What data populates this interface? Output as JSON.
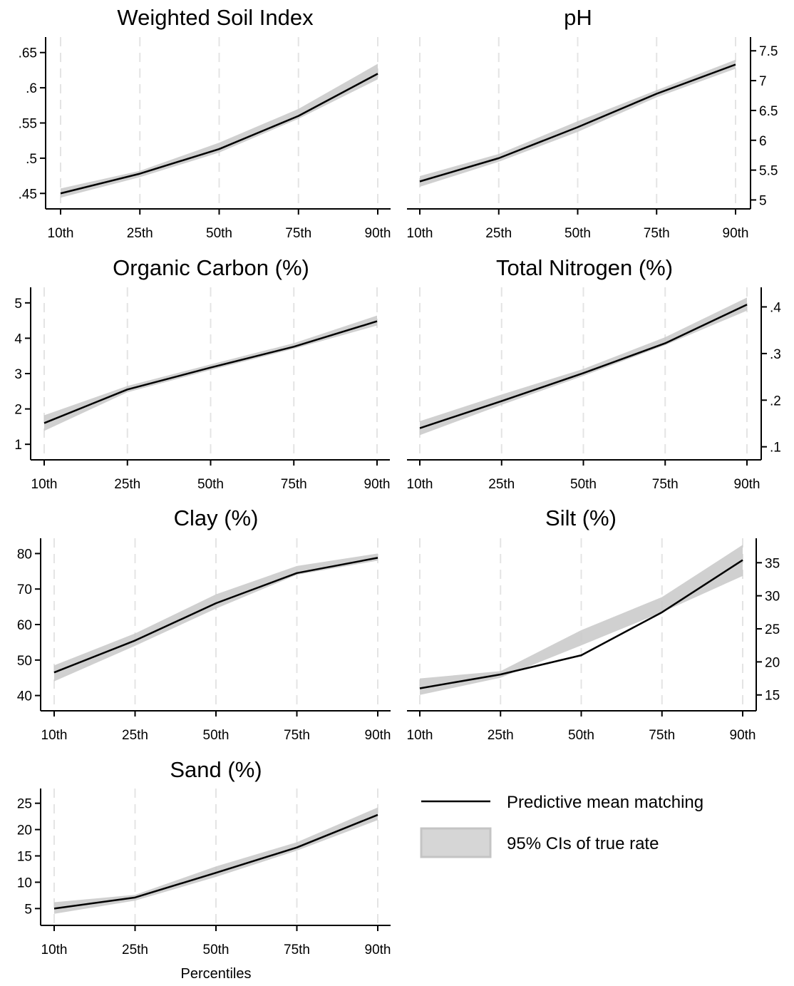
{
  "chart_data": [
    {
      "type": "line",
      "title": "Weighted Soil Index",
      "categories": [
        "10th",
        "25th",
        "50th",
        "75th",
        "90th"
      ],
      "series": [
        {
          "name": "Predictive mean matching",
          "values": [
            0.45,
            0.478,
            0.513,
            0.56,
            0.62
          ]
        },
        {
          "name": "95% CIs of true rate",
          "lower": [
            0.444,
            0.473,
            0.508,
            0.556,
            0.612
          ],
          "upper": [
            0.457,
            0.482,
            0.522,
            0.57,
            0.634
          ]
        }
      ],
      "yticks": [
        ".45",
        ".5",
        ".55",
        ".6",
        ".65"
      ],
      "ytick_values": [
        0.45,
        0.5,
        0.55,
        0.6,
        0.65
      ],
      "ylim": [
        0.428,
        0.672
      ],
      "yaxis_side": "left",
      "grid": "vertical dashed"
    },
    {
      "type": "line",
      "title": "pH",
      "categories": [
        "10th",
        "25th",
        "50th",
        "75th",
        "90th"
      ],
      "series": [
        {
          "name": "Predictive mean matching",
          "values": [
            5.31,
            5.7,
            6.22,
            6.78,
            7.27
          ]
        },
        {
          "name": "95% CIs of true rate",
          "lower": [
            5.22,
            5.64,
            6.14,
            6.72,
            7.2
          ],
          "upper": [
            5.4,
            5.77,
            6.32,
            6.84,
            7.35
          ]
        }
      ],
      "yticks": [
        "5",
        "5.5",
        "6",
        "6.5",
        "7",
        "7.5"
      ],
      "ytick_values": [
        5,
        5.5,
        6,
        6.5,
        7,
        7.5
      ],
      "ylim": [
        4.85,
        7.73
      ],
      "yaxis_side": "right",
      "grid": "vertical dashed"
    },
    {
      "type": "line",
      "title": "Organic Carbon (%)",
      "categories": [
        "10th",
        "25th",
        "50th",
        "75th",
        "90th"
      ],
      "series": [
        {
          "name": "Predictive mean matching",
          "values": [
            1.6,
            2.55,
            3.17,
            3.76,
            4.48
          ]
        },
        {
          "name": "95% CIs of true rate",
          "lower": [
            1.38,
            2.47,
            3.1,
            3.7,
            4.36
          ],
          "upper": [
            1.82,
            2.65,
            3.26,
            3.86,
            4.64
          ]
        }
      ],
      "yticks": [
        "1",
        "2",
        "3",
        "4",
        "5"
      ],
      "ytick_values": [
        1,
        2,
        3,
        4,
        5
      ],
      "ylim": [
        0.56,
        5.44
      ],
      "yaxis_side": "left",
      "grid": "vertical dashed"
    },
    {
      "type": "line",
      "title": "Total Nitrogen (%)",
      "categories": [
        "10th",
        "25th",
        "50th",
        "75th",
        "90th"
      ],
      "series": [
        {
          "name": "Predictive mean matching",
          "values": [
            0.14,
            0.198,
            0.258,
            0.322,
            0.405
          ]
        },
        {
          "name": "95% CIs of true rate",
          "lower": [
            0.125,
            0.19,
            0.252,
            0.318,
            0.392
          ],
          "upper": [
            0.155,
            0.212,
            0.267,
            0.335,
            0.42
          ]
        }
      ],
      "yticks": [
        ".1",
        ".2",
        ".3",
        ".4"
      ],
      "ytick_values": [
        0.1,
        0.2,
        0.3,
        0.4
      ],
      "ylim": [
        0.072,
        0.442
      ],
      "yaxis_side": "right",
      "grid": "vertical dashed"
    },
    {
      "type": "line",
      "title": "Clay (%)",
      "categories": [
        "10th",
        "25th",
        "50th",
        "75th",
        "90th"
      ],
      "series": [
        {
          "name": "Predictive mean matching",
          "values": [
            46.5,
            55.5,
            66.0,
            74.5,
            78.8
          ]
        },
        {
          "name": "95% CIs of true rate",
          "lower": [
            44.0,
            54.0,
            64.5,
            74.0,
            78.0
          ],
          "upper": [
            48.5,
            57.5,
            68.5,
            76.5,
            80.0
          ]
        }
      ],
      "yticks": [
        "40",
        "50",
        "60",
        "70",
        "80"
      ],
      "ytick_values": [
        40,
        50,
        60,
        70,
        80
      ],
      "ylim": [
        35.7,
        84.3
      ],
      "yaxis_side": "left",
      "grid": "vertical dashed"
    },
    {
      "type": "line",
      "title": "Silt (%)",
      "categories": [
        "10th",
        "25th",
        "50th",
        "75th",
        "90th"
      ],
      "series": [
        {
          "name": "Predictive mean matching",
          "values": [
            16.0,
            18.1,
            21.0,
            27.5,
            35.4
          ]
        },
        {
          "name": "95% CIs of true rate",
          "lower": [
            15.0,
            17.6,
            22.5,
            27.5,
            33.0
          ],
          "upper": [
            17.5,
            18.6,
            24.8,
            29.8,
            37.7
          ]
        }
      ],
      "yticks": [
        "15",
        "20",
        "25",
        "30",
        "35"
      ],
      "ytick_values": [
        15,
        20,
        25,
        30,
        35
      ],
      "ylim": [
        12.6,
        38.7
      ],
      "yaxis_side": "right",
      "grid": "vertical dashed"
    },
    {
      "type": "line",
      "title": "Sand (%)",
      "categories": [
        "10th",
        "25th",
        "50th",
        "75th",
        "90th"
      ],
      "series": [
        {
          "name": "Predictive mean matching",
          "values": [
            5.0,
            7.1,
            11.8,
            16.6,
            22.8
          ]
        },
        {
          "name": "95% CIs of true rate",
          "lower": [
            4.0,
            6.5,
            11.0,
            16.0,
            21.8
          ],
          "upper": [
            6.2,
            7.6,
            13.0,
            17.6,
            24.2
          ]
        }
      ],
      "yticks": [
        "5",
        "10",
        "15",
        "20",
        "25"
      ],
      "ytick_values": [
        5,
        10,
        15,
        20,
        25
      ],
      "ylim": [
        1.8,
        27.8
      ],
      "yaxis_side": "left",
      "grid": "vertical dashed",
      "xlabel": "Percentiles"
    }
  ],
  "legend": {
    "line_label": "Predictive mean matching",
    "band_label": "95% CIs of true rate",
    "placement": "bottom-right"
  },
  "colors": {
    "line": "#000000",
    "band": "#c8c8c8",
    "grid": "#e4e4e4",
    "axis": "#000000"
  }
}
